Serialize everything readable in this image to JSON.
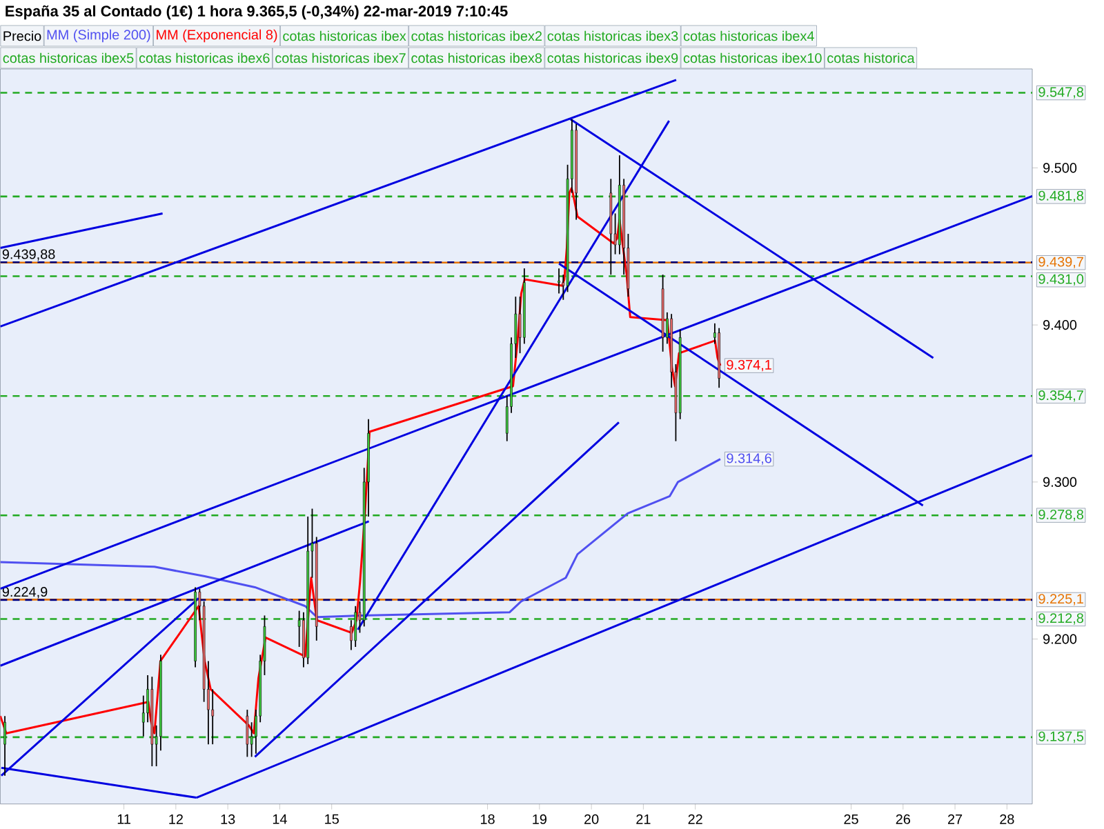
{
  "chart_data": {
    "type": "candlestick",
    "title": "España 35 al Contado (1€) 1 hora 9.365,5 (-0,34%) 22-mar-2019 7:10:45",
    "legend": "top",
    "xlim": [
      "2019-03-08T14:53",
      "2019-03-28T11:42"
    ],
    "ylim": [
      9095,
      9563
    ],
    "xticks": [
      {
        "value": "2019-03-11",
        "label": "11"
      },
      {
        "value": "2019-03-12",
        "label": "12"
      },
      {
        "value": "2019-03-13",
        "label": "13"
      },
      {
        "value": "2019-03-14",
        "label": "14"
      },
      {
        "value": "2019-03-15",
        "label": "15"
      },
      {
        "value": "2019-03-18",
        "label": "18"
      },
      {
        "value": "2019-03-19",
        "label": "19"
      },
      {
        "value": "2019-03-20",
        "label": "20"
      },
      {
        "value": "2019-03-21",
        "label": "21"
      },
      {
        "value": "2019-03-22",
        "label": "22"
      },
      {
        "value": "2019-03-25",
        "label": "25"
      },
      {
        "value": "2019-03-26",
        "label": "26"
      },
      {
        "value": "2019-03-27",
        "label": "27"
      },
      {
        "value": "2019-03-28",
        "label": "28"
      }
    ],
    "yticks": [
      {
        "value": 9200,
        "label": "9.200"
      },
      {
        "value": 9300,
        "label": "9.300"
      },
      {
        "value": 9400,
        "label": "9.400"
      },
      {
        "value": 9500,
        "label": "9.500"
      }
    ],
    "ref_lines": [
      {
        "axis": "y",
        "value": 9547.8,
        "label": "9.547,8",
        "color": "#22aa22",
        "line_style": "dashed"
      },
      {
        "axis": "y",
        "value": 9481.8,
        "label": "9.481,8",
        "color": "#22aa22",
        "line_style": "dashed"
      },
      {
        "axis": "y",
        "value": 9431.0,
        "label": "9.431,0",
        "color": "#22aa22",
        "line_style": "dashed"
      },
      {
        "axis": "y",
        "value": 9354.7,
        "label": "9.354,7",
        "color": "#22aa22",
        "line_style": "dashed"
      },
      {
        "axis": "y",
        "value": 9278.8,
        "label": "9.278,8",
        "color": "#22aa22",
        "line_style": "dashed"
      },
      {
        "axis": "y",
        "value": 9212.8,
        "label": "9.212,8",
        "color": "#22aa22",
        "line_style": "dashed"
      },
      {
        "axis": "y",
        "value": 9137.5,
        "label": "9.137,5",
        "color": "#22aa22",
        "line_style": "dashed"
      },
      {
        "axis": "y",
        "value": 9439.7,
        "label": "9.439,7",
        "color": "#e67300",
        "line_style": "solid"
      },
      {
        "axis": "y",
        "value": 9225.1,
        "label": "9.225,1",
        "color": "#e67300",
        "line_style": "solid"
      },
      {
        "axis": "y",
        "value": 9439.88,
        "label": "9.439,88",
        "color": "#000080",
        "line_style": "dashed"
      },
      {
        "axis": "y",
        "value": 9224.9,
        "label": "9.224,9",
        "color": "#000080",
        "line_style": "dashed"
      }
    ],
    "annotations": [
      "cotas historicas ibex",
      "cotas historicas ibex2",
      "cotas historicas ibex3",
      "cotas historicas ibex4",
      "cotas historicas ibex5",
      "cotas historicas ibex6",
      "cotas historicas ibex7",
      "cotas historicas ibex8",
      "cotas historicas ibex9",
      "cotas historicas ibex10",
      "cotas historica"
    ],
    "series": [
      {
        "name": "Precio",
        "type": "candlestick",
        "x": [
          "2019-03-08T17:00",
          "2019-03-11T09:00",
          "2019-03-11T11:00",
          "2019-03-11T13:00",
          "2019-03-11T15:00",
          "2019-03-11T17:00",
          "2019-03-12T09:00",
          "2019-03-12T11:00",
          "2019-03-12T13:00",
          "2019-03-12T15:00",
          "2019-03-12T17:00",
          "2019-03-13T09:00",
          "2019-03-13T11:00",
          "2019-03-13T13:00",
          "2019-03-13T15:00",
          "2019-03-13T17:00",
          "2019-03-14T09:00",
          "2019-03-14T11:00",
          "2019-03-14T13:00",
          "2019-03-14T15:00",
          "2019-03-14T17:00",
          "2019-03-15T09:00",
          "2019-03-15T11:00",
          "2019-03-15T13:00",
          "2019-03-15T15:00",
          "2019-03-15T17:00",
          "2019-03-18T09:00",
          "2019-03-18T11:00",
          "2019-03-18T13:00",
          "2019-03-18T15:00",
          "2019-03-18T17:00",
          "2019-03-19T09:00",
          "2019-03-19T11:00",
          "2019-03-19T13:00",
          "2019-03-19T15:00",
          "2019-03-19T17:00",
          "2019-03-20T09:00",
          "2019-03-20T11:00",
          "2019-03-20T13:00",
          "2019-03-20T15:00",
          "2019-03-20T17:00",
          "2019-03-21T09:00",
          "2019-03-21T11:00",
          "2019-03-21T13:00",
          "2019-03-21T15:00",
          "2019-03-21T17:00",
          "2019-03-22T09:00",
          "2019-03-22T11:00"
        ],
        "ohlc": [
          [
            9133,
            9151,
            9113,
            9147
          ],
          [
            9147,
            9164,
            9138,
            9153
          ],
          [
            9153,
            9177,
            9147,
            9168
          ],
          [
            9168,
            9176,
            9119,
            9133
          ],
          [
            9133,
            9145,
            9119,
            9138
          ],
          [
            9138,
            9190,
            9129,
            9186
          ],
          [
            9186,
            9233,
            9182,
            9230
          ],
          [
            9230,
            9232,
            9212,
            9221
          ],
          [
            9221,
            9224,
            9160,
            9168
          ],
          [
            9168,
            9186,
            9133,
            9155
          ],
          [
            9155,
            9168,
            9133,
            9151
          ],
          [
            9151,
            9155,
            9125,
            9133
          ],
          [
            9133,
            9147,
            9125,
            9138
          ],
          [
            9138,
            9155,
            9127,
            9151
          ],
          [
            9151,
            9190,
            9147,
            9186
          ],
          [
            9186,
            9215,
            9177,
            9208
          ],
          [
            9208,
            9218,
            9195,
            9212
          ],
          [
            9212,
            9217,
            9182,
            9188
          ],
          [
            9188,
            9278,
            9184,
            9256
          ],
          [
            9256,
            9283,
            9239,
            9261
          ],
          [
            9261,
            9265,
            9199,
            9208
          ],
          [
            9208,
            9212,
            9193,
            9199
          ],
          [
            9199,
            9221,
            9195,
            9217
          ],
          [
            9217,
            9224,
            9204,
            9212
          ],
          [
            9212,
            9309,
            9208,
            9300
          ],
          [
            9300,
            9340,
            9278,
            9331
          ],
          [
            9331,
            9355,
            9326,
            9348
          ],
          [
            9348,
            9392,
            9344,
            9388
          ],
          [
            9388,
            9418,
            9379,
            9407
          ],
          [
            9407,
            9418,
            9382,
            9392
          ],
          [
            9392,
            9436,
            9388,
            9427
          ],
          [
            9427,
            9436,
            9420,
            9428
          ],
          [
            9427,
            9432,
            9416,
            9425
          ],
          [
            9425,
            9502,
            9421,
            9493
          ],
          [
            9493,
            9531,
            9484,
            9524
          ],
          [
            9524,
            9528,
            9467,
            9484
          ],
          [
            9484,
            9493,
            9432,
            9458
          ],
          [
            9458,
            9471,
            9445,
            9451
          ],
          [
            9451,
            9508,
            9445,
            9489
          ],
          [
            9489,
            9493,
            9432,
            9449
          ],
          [
            9449,
            9458,
            9418,
            9423
          ],
          [
            9423,
            9432,
            9383,
            9392
          ],
          [
            9392,
            9408,
            9388,
            9404
          ],
          [
            9404,
            9407,
            9360,
            9370
          ],
          [
            9370,
            9375,
            9326,
            9344
          ],
          [
            9344,
            9397,
            9340,
            9392
          ],
          [
            9392,
            9401,
            9388,
            9395
          ],
          [
            9395,
            9398,
            9360,
            9366
          ]
        ],
        "colors": [
          "#3cc83c",
          "#3cc83c",
          "#3cc83c",
          "#e86a6a",
          "#3cc83c",
          "#3cc83c",
          "#3cc83c",
          "#e86a6a",
          "#e86a6a",
          "#e86a6a",
          "#e86a6a",
          "#e86a6a",
          "#3cc83c",
          "#3cc83c",
          "#3cc83c",
          "#3cc83c",
          "#3cc83c",
          "#e86a6a",
          "#3cc83c",
          "#3cc83c",
          "#e86a6a",
          "#e86a6a",
          "#3cc83c",
          "#e86a6a",
          "#3cc83c",
          "#3cc83c",
          "#3cc83c",
          "#3cc83c",
          "#3cc83c",
          "#e86a6a",
          "#3cc83c",
          "#3cc83c",
          "#e86a6a",
          "#3cc83c",
          "#3cc83c",
          "#e86a6a",
          "#e86a6a",
          "#e86a6a",
          "#3cc83c",
          "#e86a6a",
          "#e86a6a",
          "#e86a6a",
          "#3cc83c",
          "#e86a6a",
          "#e86a6a",
          "#3cc83c",
          "#3cc83c",
          "#e86a6a"
        ]
      },
      {
        "name": "MM (Simple 200)",
        "type": "line",
        "color": "#5050f0",
        "x": [
          "2019-03-08T14:53",
          "2019-03-11T14:06",
          "2019-03-12T13:18",
          "2019-03-13T12:31",
          "2019-03-14T11:44",
          "2019-03-14T17:09",
          "2019-03-15T13:44",
          "2019-03-18T10:09",
          "2019-03-18T15:34",
          "2019-03-19T12:09",
          "2019-03-19T17:35",
          "2019-03-20T16:47",
          "2019-03-21T12:13",
          "2019-03-21T16:00",
          "2019-03-22T11:35"
        ],
        "values": [
          9249,
          9246,
          9240,
          9233,
          9221,
          9214,
          9215,
          9217,
          9224,
          9239,
          9254,
          9280,
          9291,
          9300,
          9314.6
        ],
        "value_labels": [
          null,
          null,
          null,
          null,
          null,
          null,
          null,
          null,
          null,
          null,
          null,
          null,
          null,
          null,
          "9.314,6"
        ]
      },
      {
        "name": "MM (Exponencial 8)",
        "type": "line",
        "color": "#ff0000",
        "x": [
          "2019-03-08T14:53",
          "2019-03-08T17:40",
          "2019-03-11T11:18",
          "2019-03-11T12:27",
          "2019-03-11T14:06",
          "2019-03-11T16:53",
          "2019-03-12T10:31",
          "2019-03-12T13:18",
          "2019-03-12T16:06",
          "2019-03-13T09:43",
          "2019-03-13T12:01",
          "2019-03-13T14:09",
          "2019-03-13T17:27",
          "2019-03-14T11:44",
          "2019-03-14T12:53",
          "2019-03-14T14:31",
          "2019-03-14T17:09",
          "2019-03-15T09:18",
          "2019-03-15T11:26",
          "2019-03-15T13:05",
          "2019-03-15T15:22",
          "2019-03-15T17:30",
          "2019-03-18T11:47",
          "2019-03-18T13:55",
          "2019-03-18T15:34",
          "2019-03-18T17:12",
          "2019-03-19T10:31",
          "2019-03-19T11:30",
          "2019-03-19T12:38",
          "2019-03-19T13:48",
          "2019-03-19T14:47",
          "2019-03-19T15:26",
          "2019-03-19T17:35",
          "2019-03-20T10:13",
          "2019-03-20T11:52",
          "2019-03-20T13:00",
          "2019-03-20T14:39",
          "2019-03-20T16:17",
          "2019-03-20T17:56",
          "2019-03-21T11:04",
          "2019-03-21T13:12",
          "2019-03-21T14:41",
          "2019-03-21T16:29",
          "2019-03-22T09:08",
          "2019-03-22T10:17",
          "2019-03-22T11:35"
        ],
        "values": [
          9151,
          9140,
          9160,
          9148,
          9140,
          9186,
          9221,
          9186,
          9168,
          9145,
          9140,
          9175,
          9201,
          9189,
          null,
          9239,
          9212,
          9204,
          9212,
          9236,
          9280,
          9332,
          9361,
          9390,
          9420,
          9429,
          9425,
          9429,
          9449,
          9484,
          9487,
          9484,
          9469,
          9452,
          9455,
          9467,
          9449,
          9432,
          9405,
          9403,
          9373,
          9361,
          9382,
          9390,
          9379,
          9374.1
        ],
        "value_labels": [
          null,
          null,
          null,
          null,
          null,
          null,
          null,
          null,
          null,
          null,
          null,
          null,
          null,
          null,
          null,
          null,
          null,
          null,
          null,
          null,
          null,
          null,
          null,
          null,
          null,
          null,
          null,
          null,
          null,
          null,
          null,
          null,
          null,
          null,
          null,
          null,
          null,
          null,
          null,
          null,
          null,
          null,
          null,
          null,
          null,
          "9.374,1"
        ]
      },
      {
        "type": "line",
        "color": "#0000e0",
        "x": [
          "2019-03-08T14:53",
          "2019-03-21T15:10"
        ],
        "values": [
          9399,
          9556
        ]
      },
      {
        "type": "line",
        "color": "#0000e0",
        "x": [
          "2019-03-08T14:53",
          "2019-03-11T17:52"
        ],
        "values": [
          9449,
          9471
        ]
      },
      {
        "type": "line",
        "color": "#0000e0",
        "x": [
          "2019-03-08T14:53",
          "2019-03-15T17:11"
        ],
        "values": [
          9183,
          9275
        ]
      },
      {
        "type": "line",
        "color": "#0000e0",
        "x": [
          "2019-03-08T14:53",
          "2019-03-28T11:42"
        ],
        "values": [
          9232,
          9482
        ]
      },
      {
        "type": "line",
        "color": "#0000e0",
        "x": [
          "2019-03-12T09:31",
          "2019-03-28T11:42"
        ],
        "values": [
          9099,
          9317
        ]
      },
      {
        "type": "line",
        "color": "#0000e0",
        "x": [
          "2019-03-13T12:31",
          "2019-03-20T12:41"
        ],
        "values": [
          9125,
          9338
        ]
      },
      {
        "type": "line",
        "color": "#0000e0",
        "x": [
          "2019-03-15T12:05",
          "2019-03-21T11:53"
        ],
        "values": [
          9206,
          9530
        ]
      },
      {
        "type": "line",
        "color": "#0000e0",
        "x": [
          "2019-03-08T15:22",
          "2019-03-12T10:31"
        ],
        "values": [
          9113,
          9226
        ]
      },
      {
        "type": "line",
        "color": "#0000e0",
        "x": [
          "2019-03-08T15:22",
          "2019-03-12T09:31"
        ],
        "values": [
          9118,
          9099
        ]
      },
      {
        "type": "line",
        "color": "#0000e0",
        "x": [
          "2019-03-19T14:17",
          "2019-03-26T13:57"
        ],
        "values": [
          9531,
          9379
        ]
      },
      {
        "type": "line",
        "color": "#0000e0",
        "x": [
          "2019-03-19T09:02",
          "2019-03-26T09:11"
        ],
        "values": [
          9439,
          9285
        ]
      }
    ]
  }
}
